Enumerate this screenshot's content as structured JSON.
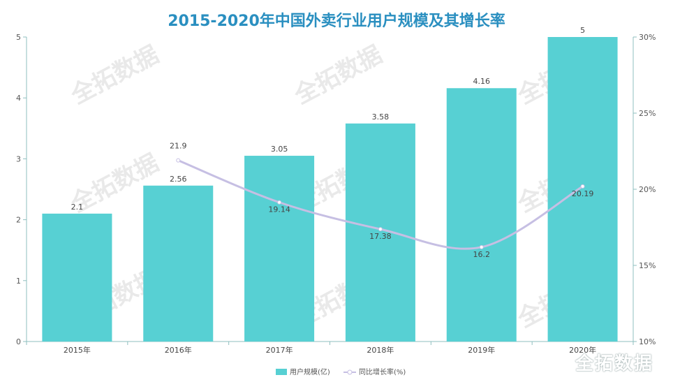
{
  "chart_data": {
    "type": "bar",
    "title": "2015-2020年中国外卖行业用户规模及其增长率",
    "categories": [
      "2015年",
      "2016年",
      "2017年",
      "2018年",
      "2019年",
      "2020年"
    ],
    "y_left": {
      "ticks": [
        "0",
        "1",
        "2",
        "3",
        "4",
        "5"
      ],
      "range": [
        0,
        5
      ]
    },
    "y_right": {
      "ticks": [
        "10%",
        "15%",
        "20%",
        "25%",
        "30%"
      ],
      "range": [
        10,
        30
      ]
    },
    "series": [
      {
        "name": "用户规模(亿)",
        "type": "bar",
        "axis": "left",
        "color": "#57d0d3",
        "values": [
          2.1,
          2.56,
          3.05,
          3.58,
          4.16,
          5
        ],
        "labels": [
          "2.1",
          "2.56",
          "3.05",
          "3.58",
          "4.16",
          "5"
        ]
      },
      {
        "name": "同比增长率(%)",
        "type": "line",
        "axis": "right",
        "color": "#c6bfe3",
        "values": [
          null,
          21.9,
          19.14,
          17.38,
          16.2,
          20.19
        ],
        "labels": [
          "",
          "21.9",
          "19.14",
          "17.38",
          "16.2",
          "20.19"
        ]
      }
    ],
    "legend_position": "bottom-center",
    "grid": false
  },
  "watermark": "全拓数据"
}
